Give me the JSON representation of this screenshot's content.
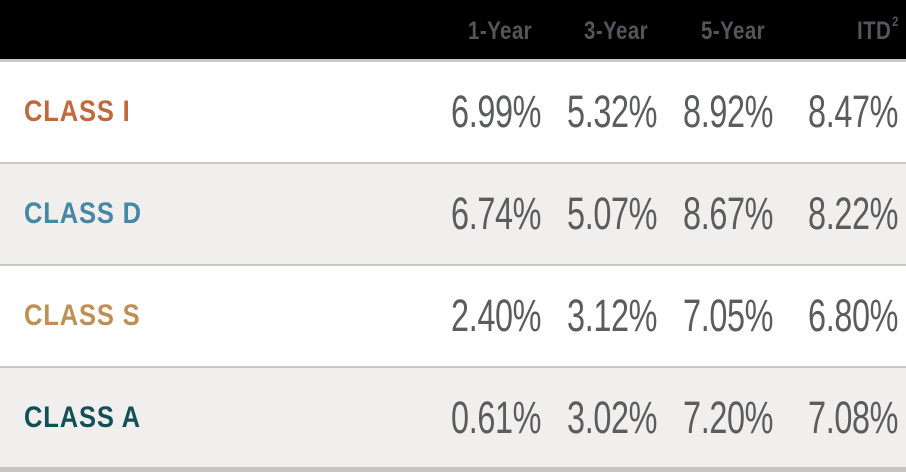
{
  "chart_data": {
    "type": "table",
    "columns": [
      "1-Year",
      "3-Year",
      "5-Year",
      "ITD"
    ],
    "itd_label": "ITD",
    "itd_superscript": "2",
    "rows": [
      {
        "label": "CLASS I",
        "label_color": "#c06a3b",
        "values": [
          "6.99%",
          "5.32%",
          "8.92%",
          "8.47%"
        ]
      },
      {
        "label": "CLASS D",
        "label_color": "#4687a6",
        "values": [
          "6.74%",
          "5.07%",
          "8.67%",
          "8.22%"
        ]
      },
      {
        "label": "CLASS S",
        "label_color": "#bf9055",
        "values": [
          "2.40%",
          "3.12%",
          "7.05%",
          "6.80%"
        ]
      },
      {
        "label": "CLASS A",
        "label_color": "#115156",
        "values": [
          "0.61%",
          "3.02%",
          "7.20%",
          "7.08%"
        ]
      }
    ],
    "colors": {
      "header_bg": "#000000",
      "header_text": "#55565a",
      "value_text": "#5b5c5e",
      "row_alt_bg": "#f0efed",
      "separator": "#cbcac9",
      "bottom_bar": "#c6c5c4"
    }
  }
}
